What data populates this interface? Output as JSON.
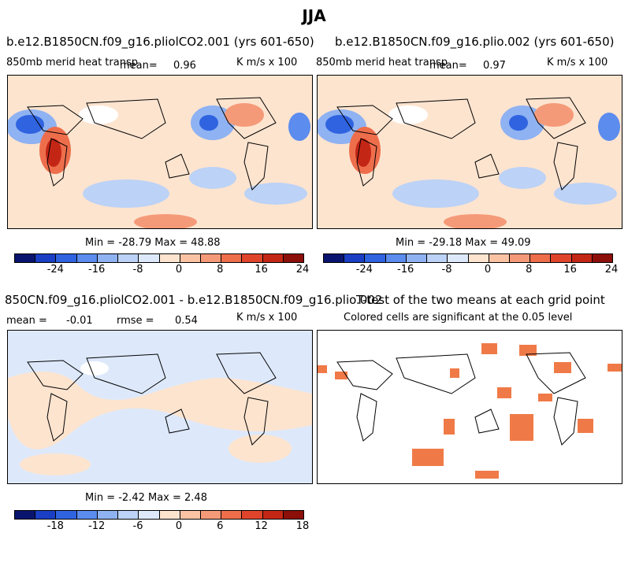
{
  "figure_title": "JJA",
  "panels": {
    "p1": {
      "title": "b.e12.B1850CN.f09_g16.pliolCO2.001 (yrs 601-650)",
      "variable": "850mb merid heat transp",
      "mean_label": "mean=",
      "mean_value": "0.96",
      "units": "K m/s x 100",
      "minmax": "Min = -28.79 Max =  48.88"
    },
    "p2": {
      "title": "b.e12.B1850CN.f09_g16.plio.002 (yrs 601-650)",
      "variable": "850mb merid heat transp",
      "mean_label": "mean=",
      "mean_value": "0.97",
      "units": "K m/s x 100",
      "minmax": "Min = -29.18 Max =  49.09"
    },
    "p3": {
      "title": "850CN.f09_g16.pliolCO2.001 - b.e12.B1850CN.f09_g16.plio.002",
      "mean_label": "mean =",
      "mean_value": "-0.01",
      "rmse_label": "rmse =",
      "rmse_value": "0.54",
      "units": "K m/s x 100",
      "minmax": "Min =  -2.42 Max =   2.48"
    },
    "p4": {
      "title": "T-test of the two means at each grid point",
      "note": "Colored cells are significant at the 0.05 level"
    }
  },
  "colorbar_colors": [
    "#08146e",
    "#1a3fc4",
    "#2f63e0",
    "#5b8cee",
    "#8fb2f2",
    "#bcd2f6",
    "#dde9fb",
    "#fde4cf",
    "#fbc3a4",
    "#f59a78",
    "#ee6e4c",
    "#e0452c",
    "#c42616",
    "#8c0f0a"
  ],
  "colorbar_main_ticks": [
    "-24",
    "-16",
    "-8",
    "0",
    "8",
    "16",
    "24"
  ],
  "colorbar_diff_ticks": [
    "-18",
    "-12",
    "-6",
    "0",
    "6",
    "12",
    "18"
  ],
  "ttest_color": "#f07a47"
}
